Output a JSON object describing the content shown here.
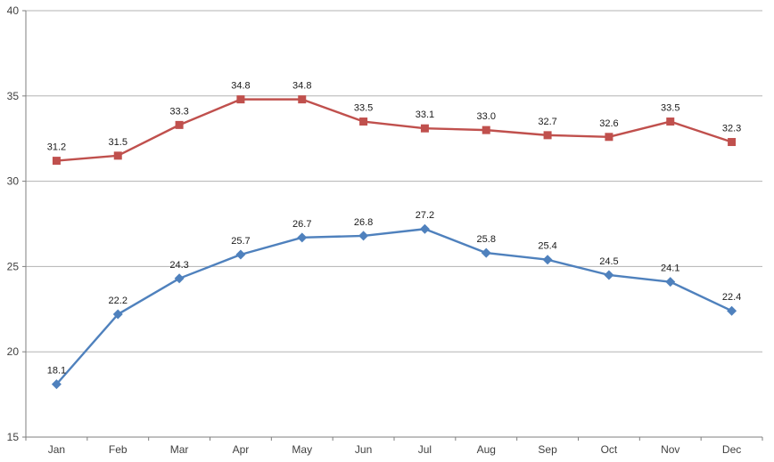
{
  "chart_data": {
    "type": "line",
    "title": "",
    "xlabel": "",
    "ylabel": "",
    "categories": [
      "Jan",
      "Feb",
      "Mar",
      "Apr",
      "May",
      "Jun",
      "Jul",
      "Aug",
      "Sep",
      "Oct",
      "Nov",
      "Dec"
    ],
    "series": [
      {
        "id": "red-series",
        "marker": "square",
        "color": "#C0504D",
        "values": [
          31.2,
          31.5,
          33.3,
          34.8,
          34.8,
          33.5,
          33.1,
          33.0,
          32.7,
          32.6,
          33.5,
          32.3
        ],
        "data_labels": [
          "31.2",
          "31.5",
          "33.3",
          "34.8",
          "34.8",
          "33.5",
          "33.1",
          "33.0",
          "32.7",
          "32.6",
          "33.5",
          "32.3"
        ]
      },
      {
        "id": "blue-series",
        "marker": "diamond",
        "color": "#4F81BD",
        "values": [
          18.1,
          22.2,
          24.3,
          25.7,
          26.7,
          26.8,
          27.2,
          25.8,
          25.4,
          24.5,
          24.1,
          22.4
        ],
        "data_labels": [
          "18.1",
          "22.2",
          "24.3",
          "25.7",
          "26.7",
          "26.8",
          "27.2",
          "25.8",
          "25.4",
          "24.5",
          "24.1",
          "22.4"
        ]
      }
    ],
    "ylim": [
      15,
      40
    ],
    "yticks": [
      15,
      20,
      25,
      30,
      35,
      40
    ],
    "grid": "horizontal",
    "legend": "none",
    "data_labels_shown": true,
    "colors": {
      "background": "#FFFFFF",
      "gridline": "#B3B3B3",
      "axis": "#7F7F7F",
      "tick_label": "#3F3F3F",
      "data_label": "#1A1A1A"
    }
  }
}
